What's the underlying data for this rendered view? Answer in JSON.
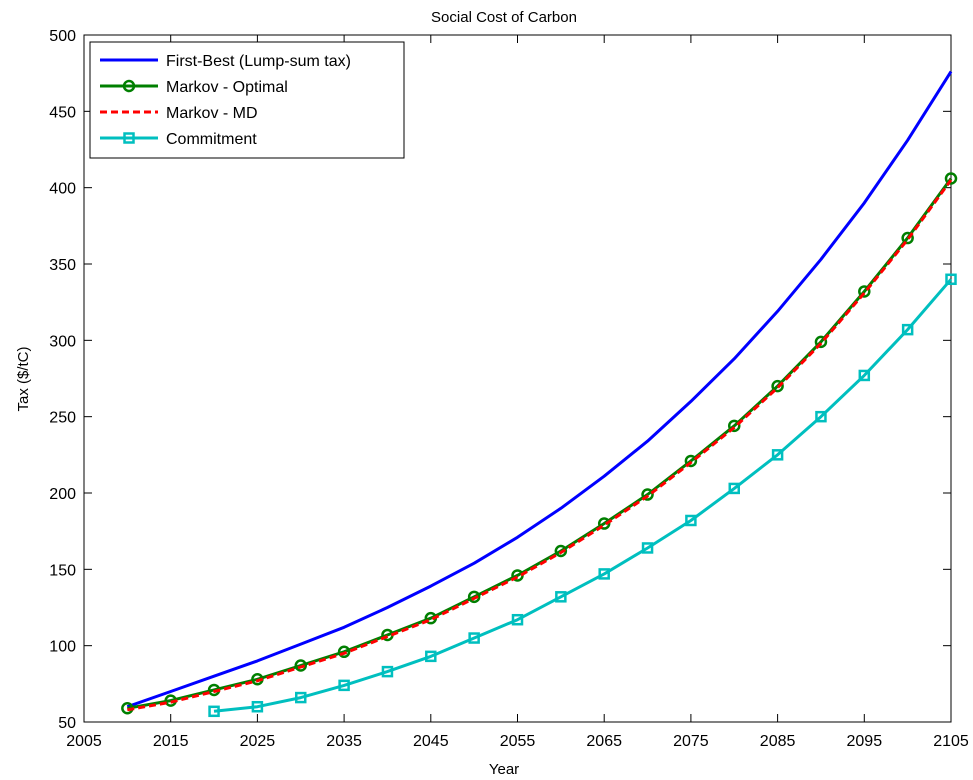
{
  "chart_data": {
    "type": "line",
    "title": "Social Cost of Carbon",
    "xlabel": "Year",
    "ylabel": "Tax ($/tC)",
    "xlim": [
      2005,
      2105
    ],
    "ylim": [
      50,
      500
    ],
    "xticks": [
      2005,
      2015,
      2025,
      2035,
      2045,
      2055,
      2065,
      2075,
      2085,
      2095,
      2105
    ],
    "yticks": [
      50,
      100,
      150,
      200,
      250,
      300,
      350,
      400,
      450,
      500
    ],
    "grid": false,
    "legend_position": "top-left",
    "series": [
      {
        "name": "First-Best (Lump-sum tax)",
        "color": "#0000ff",
        "line_style": "solid",
        "marker": "none",
        "x": [
          2010,
          2015,
          2020,
          2025,
          2030,
          2035,
          2040,
          2045,
          2050,
          2055,
          2060,
          2065,
          2070,
          2075,
          2080,
          2085,
          2090,
          2095,
          2100,
          2105
        ],
        "y": [
          60,
          70,
          80,
          90,
          101,
          112,
          125,
          139,
          154,
          171,
          190,
          211,
          234,
          260,
          288,
          319,
          353,
          390,
          431,
          476
        ]
      },
      {
        "name": "Markov - Optimal",
        "color": "#007f00",
        "line_style": "solid",
        "marker": "circle",
        "x": [
          2010,
          2015,
          2020,
          2025,
          2030,
          2035,
          2040,
          2045,
          2050,
          2055,
          2060,
          2065,
          2070,
          2075,
          2080,
          2085,
          2090,
          2095,
          2100,
          2105
        ],
        "y": [
          59,
          64,
          71,
          78,
          87,
          96,
          107,
          118,
          132,
          146,
          162,
          180,
          199,
          221,
          244,
          270,
          299,
          332,
          367,
          406
        ]
      },
      {
        "name": "Markov - MD",
        "color": "#ff0000",
        "line_style": "dashed",
        "marker": "none",
        "x": [
          2010,
          2015,
          2020,
          2025,
          2030,
          2035,
          2040,
          2045,
          2050,
          2055,
          2060,
          2065,
          2070,
          2075,
          2080,
          2085,
          2090,
          2095,
          2100,
          2105
        ],
        "y": [
          58,
          63,
          70,
          77,
          86,
          95,
          106,
          117,
          131,
          145,
          161,
          179,
          198,
          220,
          243,
          269,
          298,
          331,
          366,
          405
        ]
      },
      {
        "name": "Commitment",
        "color": "#00bfbf",
        "line_style": "solid",
        "marker": "square",
        "x": [
          2020,
          2025,
          2030,
          2035,
          2040,
          2045,
          2050,
          2055,
          2060,
          2065,
          2070,
          2075,
          2080,
          2085,
          2090,
          2095,
          2100,
          2105
        ],
        "y": [
          57,
          60,
          66,
          74,
          83,
          93,
          105,
          117,
          132,
          147,
          164,
          182,
          203,
          225,
          250,
          277,
          307,
          340
        ]
      }
    ]
  }
}
